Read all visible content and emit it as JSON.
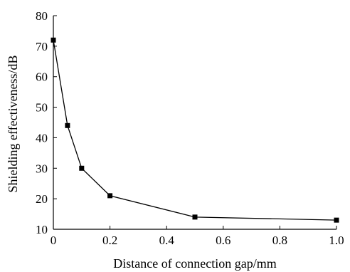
{
  "chart_data": {
    "type": "line",
    "title": "",
    "xlabel": "Distance of connection gap/mm",
    "ylabel": "Shielding effectiveness/dB",
    "xlim": [
      0,
      1.0
    ],
    "ylim": [
      10,
      80
    ],
    "xticks": [
      0,
      0.2,
      0.4,
      0.6,
      0.8,
      1.0
    ],
    "xtick_labels": [
      "0",
      "0.2",
      "0.4",
      "0.6",
      "0.8",
      "1.0"
    ],
    "yticks": [
      10,
      20,
      30,
      40,
      50,
      60,
      70,
      80
    ],
    "ytick_labels": [
      "10",
      "20",
      "30",
      "40",
      "50",
      "60",
      "70",
      "80"
    ],
    "grid": false,
    "marker": "square",
    "color": "#000000",
    "series": [
      {
        "x": [
          0,
          0.05,
          0.1,
          0.2,
          0.5,
          1.0
        ],
        "y": [
          72,
          44,
          30,
          21,
          14,
          13
        ]
      }
    ]
  }
}
